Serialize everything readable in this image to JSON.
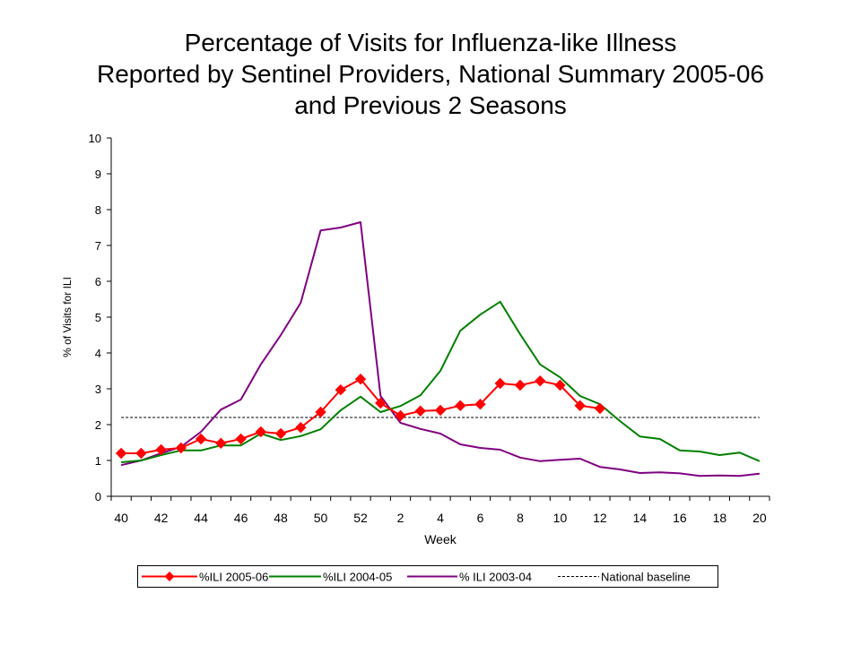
{
  "chart_data": {
    "type": "line",
    "title_lines": [
      "Percentage of Visits for Influenza-like Illness",
      "Reported by Sentinel Providers, National Summary 2005-06",
      "and Previous 2 Seasons"
    ],
    "xlabel": "Week",
    "ylabel": "% of Visits for ILI",
    "ylim": [
      0,
      10
    ],
    "yticks": [
      "0",
      "1",
      "2",
      "3",
      "4",
      "5",
      "6",
      "7",
      "8",
      "9",
      "10"
    ],
    "x_weeks": [
      "40",
      "41",
      "42",
      "43",
      "44",
      "45",
      "46",
      "47",
      "48",
      "49",
      "50",
      "51",
      "52",
      "1",
      "2",
      "3",
      "4",
      "5",
      "6",
      "7",
      "8",
      "9",
      "10",
      "11",
      "12",
      "13",
      "14",
      "15",
      "16",
      "17",
      "18",
      "19",
      "20"
    ],
    "xtick_labels": [
      "40",
      "",
      "42",
      "",
      "44",
      "",
      "46",
      "",
      "48",
      "",
      "50",
      "",
      "52",
      "",
      "2",
      "",
      "4",
      "",
      "6",
      "",
      "8",
      "",
      "10",
      "",
      "12",
      "",
      "14",
      "",
      "16",
      "",
      "18",
      "",
      "20"
    ],
    "series": [
      {
        "name": "%ILI 2005-06",
        "color": "#ff0000",
        "marker": "diamond",
        "values": [
          1.2,
          1.2,
          1.3,
          1.35,
          1.6,
          1.48,
          1.6,
          1.8,
          1.75,
          1.92,
          2.35,
          2.97,
          3.27,
          2.6,
          2.25,
          2.38,
          2.4,
          2.53,
          2.57,
          3.15,
          3.1,
          3.22,
          3.1,
          2.53,
          2.45
        ]
      },
      {
        "name": "%ILI 2004-05",
        "color": "#008000",
        "marker": "none",
        "values": [
          0.95,
          1.0,
          1.15,
          1.28,
          1.28,
          1.42,
          1.42,
          1.75,
          1.57,
          1.68,
          1.87,
          2.4,
          2.78,
          2.35,
          2.52,
          2.82,
          3.5,
          4.62,
          5.07,
          5.43,
          4.52,
          3.68,
          3.32,
          2.8,
          2.57,
          2.1,
          1.67,
          1.6,
          1.28,
          1.25,
          1.15,
          1.22,
          0.98
        ]
      },
      {
        "name": "% ILI 2003-04",
        "color": "#800080",
        "marker": "none",
        "values": [
          0.87,
          1.0,
          1.2,
          1.38,
          1.8,
          2.42,
          2.7,
          3.68,
          4.5,
          5.4,
          7.42,
          7.5,
          7.65,
          2.8,
          2.05,
          1.88,
          1.75,
          1.45,
          1.35,
          1.3,
          1.08,
          0.98,
          1.02,
          1.05,
          0.82,
          0.75,
          0.65,
          0.67,
          0.64,
          0.57,
          0.58,
          0.57,
          0.63
        ]
      },
      {
        "name": "National baseline",
        "color": "#000000",
        "marker": "none",
        "style": "dashed",
        "values": [
          2.2
        ]
      }
    ],
    "grid": false,
    "legend_position": "bottom-center"
  }
}
